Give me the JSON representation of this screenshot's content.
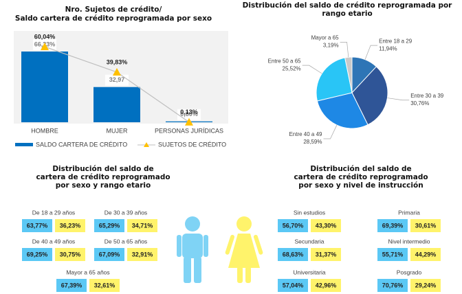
{
  "chart_data": [
    {
      "type": "bar",
      "title": [
        "Nro. Sujetos de crédito/",
        "Saldo cartera de crédito reprogramada por sexo"
      ],
      "categories": [
        "HOMBRE",
        "MUJER",
        "PERSONAS JURÍDICAS"
      ],
      "series": [
        {
          "name": "SALDO CARTERA DE CRÉDITO",
          "type": "bar",
          "color": "#0070c0",
          "values": [
            66.23,
            32.97,
            0.8
          ],
          "value_labels": [
            "66,23%",
            "32,97",
            "0,80%"
          ]
        },
        {
          "name": "SUJETOS DE CRÉDITO",
          "type": "line",
          "color": "#ffc000",
          "values": [
            60.04,
            39.83,
            0.13
          ],
          "value_labels": [
            "60,04%",
            "39,83%",
            "0,13%"
          ]
        }
      ]
    },
    {
      "type": "pie",
      "title": [
        "Distribución del saldo de crédito reprogramada por",
        "rango etario"
      ],
      "categories": [
        "Entre 18 a 29",
        "Entre 30 a 39",
        "Entre 40 a 49",
        "Entre 50 a 65",
        "Mayor a 65"
      ],
      "values": [
        11.94,
        30.76,
        28.59,
        25.52,
        3.19
      ],
      "value_labels": [
        "11,94%",
        "30,76%",
        "28,59%",
        "25,52%",
        "3,19%"
      ],
      "colors": [
        "#2e75b6",
        "#2f5597",
        "#1e88e5",
        "#29c5f6",
        "#c9c9c9"
      ]
    }
  ],
  "panels": [
    {
      "title": [
        "Distribución del saldo de",
        "cartera de crédito reprogramado",
        "por sexo y rango etario"
      ],
      "groups": [
        {
          "label": "De 18 a 29 años",
          "values": [
            "63,77%",
            "36,23%"
          ]
        },
        {
          "label": "De 30 a 39 años",
          "values": [
            "65,29%",
            "34,71%"
          ]
        },
        {
          "label": "De 40 a 49 años",
          "values": [
            "69,25%",
            "30,75%"
          ]
        },
        {
          "label": "De 50 a 65 años",
          "values": [
            "67,09%",
            "32,91%"
          ]
        },
        {
          "label": "Mayor a 65 años",
          "values": [
            "67,39%",
            "32,61%"
          ]
        }
      ]
    },
    {
      "title": [
        "Distribución del saldo de",
        "cartera de crédito reprogramado",
        "por sexo y nivel de instrucción"
      ],
      "groups": [
        {
          "label": "Sin estudios",
          "values": [
            "56,70%",
            "43,30%"
          ]
        },
        {
          "label": "Primaria",
          "values": [
            "69,39%",
            "30,61%"
          ]
        },
        {
          "label": "Secundaria",
          "values": [
            "68,63%",
            "31,37%"
          ]
        },
        {
          "label": "Nivel  intermedio",
          "values": [
            "55,71%",
            "44,29%"
          ]
        },
        {
          "label": "Universitaria",
          "values": [
            "57,04%",
            "42,96%"
          ]
        },
        {
          "label": "Posgrado",
          "values": [
            "70,76%",
            "29,24%"
          ]
        }
      ]
    }
  ]
}
